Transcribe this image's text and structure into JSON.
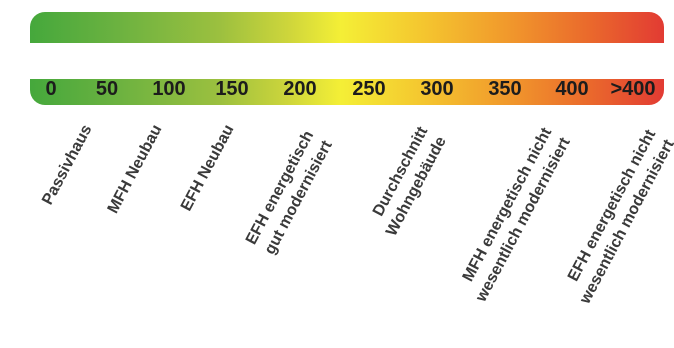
{
  "ticks": [
    "0",
    "50",
    "100",
    "150",
    "200",
    "250",
    "300",
    "350",
    "400",
    ">400"
  ],
  "categories": [
    {
      "lines": [
        "Passivhaus"
      ]
    },
    {
      "lines": [
        "MFH Neubau"
      ]
    },
    {
      "lines": [
        "EFH Neubau"
      ]
    },
    {
      "lines": [
        "EFH energetisch",
        "gut modernisiert"
      ]
    },
    {
      "lines": [
        "Durchschnitt",
        "Wohngebäude"
      ]
    },
    {
      "lines": [
        "MFH energetisch nicht",
        "wesentlich modernisiert"
      ]
    },
    {
      "lines": [
        "EFH energetisch nicht",
        "wesentlich modernisiert"
      ]
    }
  ],
  "colors": {
    "green": "#45a83c",
    "yellow": "#f4ef36",
    "orange": "#f19a2c",
    "red": "#e23b33"
  }
}
